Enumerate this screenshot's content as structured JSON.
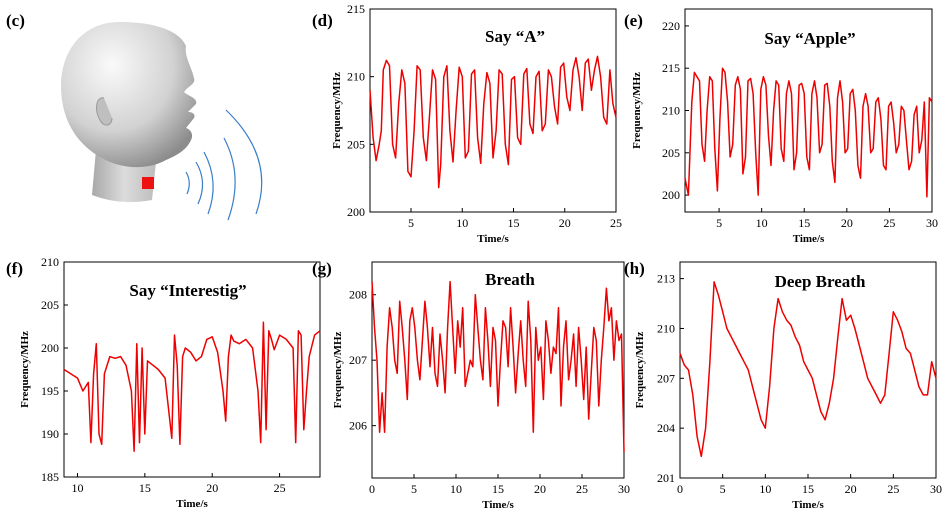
{
  "panel_c": {
    "label": "(c)",
    "marker_color": "#ee1111",
    "wave_color": "#3a7ec8",
    "illustration": "head-with-sensor-on-throat"
  },
  "chart_data": [
    {
      "id": "d",
      "label": "(d)",
      "type": "line",
      "title": "Say “A”",
      "xlabel": "Time/s",
      "ylabel": "Frequency/MHz",
      "xlim": [
        1,
        25
      ],
      "ylim": [
        200,
        215
      ],
      "xticks": [
        5,
        10,
        15,
        20,
        25
      ],
      "yticks": [
        200,
        205,
        210,
        215
      ],
      "grid": false,
      "color": "#ee0000",
      "series": [
        {
          "x": [
            1.0,
            1.3,
            1.6,
            1.9,
            2.1,
            2.3,
            2.6,
            2.9,
            3.2,
            3.5,
            3.8,
            4.1,
            4.4,
            4.7,
            5.0,
            5.3,
            5.6,
            5.9,
            6.2,
            6.5,
            6.8,
            7.1,
            7.4,
            7.7,
            7.9,
            8.2,
            8.5,
            8.8,
            9.1,
            9.4,
            9.7,
            10.0,
            10.3,
            10.6,
            10.9,
            11.2,
            11.5,
            11.8,
            12.1,
            12.4,
            12.7,
            13.0,
            13.3,
            13.6,
            13.9,
            14.2,
            14.5,
            14.8,
            15.1,
            15.4,
            15.7,
            16.0,
            16.3,
            16.6,
            16.9,
            17.2,
            17.5,
            17.8,
            18.1,
            18.4,
            18.7,
            19.0,
            19.3,
            19.6,
            19.9,
            20.2,
            20.5,
            20.8,
            21.1,
            21.4,
            21.7,
            22.0,
            22.3,
            22.6,
            22.9,
            23.2,
            23.5,
            23.8,
            24.1,
            24.4,
            24.7,
            25.0
          ],
          "y": [
            209.0,
            205.5,
            203.8,
            205.0,
            206.0,
            210.5,
            211.2,
            210.8,
            205.0,
            204.0,
            208.0,
            210.5,
            209.5,
            203.0,
            202.6,
            206.0,
            210.8,
            210.5,
            205.5,
            203.8,
            207.0,
            210.5,
            209.8,
            201.8,
            203.5,
            210.0,
            210.8,
            206.0,
            203.7,
            207.5,
            210.7,
            210.0,
            204.0,
            204.5,
            210.2,
            210.5,
            205.5,
            203.6,
            208.0,
            210.3,
            209.5,
            204.0,
            206.0,
            210.5,
            210.2,
            205.0,
            203.5,
            209.8,
            210.0,
            205.5,
            205.0,
            210.2,
            210.6,
            206.5,
            205.8,
            210.0,
            210.4,
            206.0,
            206.5,
            210.5,
            210.0,
            207.8,
            206.5,
            210.7,
            211.0,
            208.5,
            207.5,
            210.5,
            211.4,
            210.0,
            207.5,
            211.0,
            211.3,
            209.0,
            210.5,
            211.5,
            210.0,
            207.0,
            206.5,
            210.5,
            208.0,
            207.0
          ]
        }
      ]
    },
    {
      "id": "e",
      "label": "(e)",
      "type": "line",
      "title": "Say “Apple”",
      "xlabel": "Time/s",
      "ylabel": "Frequency/MHz",
      "xlim": [
        1,
        30
      ],
      "ylim": [
        198,
        222
      ],
      "xticks": [
        5,
        10,
        15,
        20,
        25,
        30
      ],
      "yticks": [
        200,
        205,
        210,
        215,
        220
      ],
      "grid": false,
      "color": "#ee0000",
      "series": [
        {
          "x": [
            1.0,
            1.4,
            1.8,
            2.1,
            2.4,
            2.7,
            3.0,
            3.3,
            3.6,
            3.9,
            4.2,
            4.5,
            4.8,
            5.1,
            5.4,
            5.7,
            6.0,
            6.3,
            6.6,
            6.9,
            7.2,
            7.5,
            7.8,
            8.1,
            8.4,
            8.7,
            9.0,
            9.3,
            9.6,
            9.9,
            10.2,
            10.5,
            10.8,
            11.1,
            11.4,
            11.7,
            12.0,
            12.3,
            12.6,
            12.9,
            13.2,
            13.5,
            13.8,
            14.1,
            14.4,
            14.7,
            15.0,
            15.3,
            15.6,
            15.9,
            16.2,
            16.5,
            16.8,
            17.1,
            17.4,
            17.7,
            18.0,
            18.3,
            18.6,
            18.9,
            19.2,
            19.5,
            19.8,
            20.1,
            20.4,
            20.7,
            21.0,
            21.3,
            21.6,
            21.9,
            22.2,
            22.5,
            22.8,
            23.1,
            23.4,
            23.7,
            24.0,
            24.3,
            24.6,
            24.9,
            25.2,
            25.5,
            25.8,
            26.1,
            26.4,
            26.7,
            27.0,
            27.3,
            27.6,
            27.9,
            28.2,
            28.5,
            28.8,
            29.1,
            29.4,
            29.7,
            30.0
          ],
          "y": [
            202.0,
            200.0,
            211.0,
            214.5,
            214.0,
            213.5,
            206.0,
            204.0,
            210.0,
            214.0,
            213.5,
            205.5,
            200.5,
            209.0,
            215.0,
            214.5,
            211.0,
            204.5,
            206.0,
            213.0,
            214.0,
            212.5,
            202.5,
            204.5,
            213.5,
            213.8,
            212.0,
            205.0,
            200.0,
            212.5,
            214.0,
            213.0,
            207.0,
            203.5,
            210.0,
            213.5,
            213.0,
            205.5,
            204.0,
            212.0,
            213.5,
            212.0,
            203.0,
            205.0,
            213.0,
            213.2,
            212.0,
            204.5,
            203.0,
            212.0,
            213.5,
            211.5,
            205.0,
            206.0,
            213.0,
            213.2,
            210.5,
            204.0,
            201.5,
            211.5,
            213.5,
            211.0,
            205.0,
            205.5,
            212.0,
            212.5,
            210.0,
            203.5,
            202.0,
            210.5,
            212.0,
            210.5,
            205.0,
            205.5,
            211.0,
            211.5,
            209.0,
            203.5,
            203.0,
            210.5,
            211.0,
            208.5,
            205.0,
            206.0,
            210.5,
            210.0,
            206.5,
            203.0,
            204.0,
            209.5,
            210.5,
            205.0,
            206.5,
            211.0,
            199.8,
            211.5,
            211.0
          ]
        }
      ]
    },
    {
      "id": "f",
      "label": "(f)",
      "type": "line",
      "title": "Say “Interestig”",
      "xlabel": "Time/s",
      "ylabel": "Frequency/MHz",
      "xlim": [
        9,
        28
      ],
      "ylim": [
        185,
        210
      ],
      "xticks": [
        10,
        15,
        20,
        25
      ],
      "yticks": [
        185,
        190,
        195,
        200,
        205,
        210
      ],
      "grid": false,
      "color": "#ee0000",
      "series": [
        {
          "x": [
            9.0,
            9.5,
            10.0,
            10.4,
            10.8,
            11.0,
            11.2,
            11.4,
            11.6,
            11.8,
            12.0,
            12.4,
            12.8,
            13.2,
            13.6,
            14.0,
            14.2,
            14.4,
            14.6,
            14.8,
            15.0,
            15.2,
            15.6,
            16.0,
            16.5,
            17.0,
            17.2,
            17.4,
            17.6,
            17.8,
            18.0,
            18.4,
            18.8,
            19.2,
            19.6,
            20.0,
            20.4,
            20.8,
            21.0,
            21.2,
            21.4,
            21.6,
            22.0,
            22.5,
            23.0,
            23.4,
            23.6,
            23.8,
            24.0,
            24.2,
            24.4,
            24.6,
            25.0,
            25.5,
            26.0,
            26.2,
            26.4,
            26.6,
            26.8,
            27.0,
            27.2,
            27.6,
            28.0
          ],
          "y": [
            197.5,
            197.0,
            196.5,
            195.0,
            196.0,
            189.0,
            197.0,
            200.5,
            190.0,
            188.8,
            197.0,
            199.0,
            198.8,
            199.0,
            198.0,
            195.0,
            188.0,
            200.5,
            189.0,
            200.0,
            190.0,
            198.5,
            198.0,
            197.5,
            196.5,
            189.5,
            201.5,
            198.0,
            188.8,
            199.0,
            200.0,
            199.5,
            198.5,
            199.0,
            201.0,
            201.3,
            199.5,
            195.0,
            191.5,
            199.0,
            201.5,
            200.8,
            200.5,
            201.0,
            200.0,
            195.0,
            189.0,
            203.0,
            190.5,
            202.0,
            201.0,
            199.8,
            201.5,
            201.0,
            200.0,
            189.0,
            202.0,
            201.5,
            190.5,
            195.0,
            199.0,
            201.5,
            202.0
          ]
        }
      ]
    },
    {
      "id": "g",
      "label": "(g)",
      "type": "line",
      "title": "Breath",
      "xlabel": "Time/s",
      "ylabel": "Frequency/MHz",
      "xlim": [
        0,
        30
      ],
      "ylim": [
        205.2,
        208.5
      ],
      "xticks": [
        0,
        5,
        10,
        15,
        20,
        25,
        30
      ],
      "yticks": [
        206,
        207,
        208
      ],
      "grid": false,
      "color": "#ee0000",
      "series": [
        {
          "x": [
            0.0,
            0.3,
            0.6,
            0.9,
            1.2,
            1.5,
            1.8,
            2.1,
            2.4,
            2.7,
            3.0,
            3.3,
            3.6,
            3.9,
            4.2,
            4.5,
            4.8,
            5.1,
            5.4,
            5.7,
            6.0,
            6.3,
            6.6,
            6.9,
            7.2,
            7.5,
            7.8,
            8.1,
            8.4,
            8.7,
            9.0,
            9.3,
            9.6,
            9.9,
            10.2,
            10.5,
            10.8,
            11.1,
            11.4,
            11.7,
            12.0,
            12.3,
            12.6,
            12.9,
            13.2,
            13.5,
            13.8,
            14.1,
            14.4,
            14.7,
            15.0,
            15.3,
            15.6,
            15.9,
            16.2,
            16.5,
            16.8,
            17.1,
            17.4,
            17.7,
            18.0,
            18.3,
            18.6,
            18.9,
            19.2,
            19.5,
            19.8,
            20.1,
            20.4,
            20.7,
            21.0,
            21.3,
            21.6,
            21.9,
            22.2,
            22.5,
            22.8,
            23.1,
            23.4,
            23.7,
            24.0,
            24.3,
            24.6,
            24.9,
            25.2,
            25.5,
            25.8,
            26.1,
            26.4,
            26.7,
            27.0,
            27.3,
            27.6,
            27.9,
            28.2,
            28.5,
            28.8,
            29.1,
            29.4,
            29.7,
            30.0
          ],
          "y": [
            208.2,
            207.5,
            207.0,
            205.9,
            206.5,
            205.9,
            207.2,
            207.8,
            207.5,
            207.0,
            206.8,
            207.9,
            207.5,
            207.0,
            206.4,
            207.6,
            207.8,
            207.5,
            207.0,
            206.7,
            207.3,
            207.9,
            207.5,
            206.9,
            207.5,
            206.8,
            206.6,
            207.4,
            207.0,
            206.5,
            207.5,
            208.2,
            207.5,
            206.8,
            207.6,
            207.2,
            207.8,
            206.6,
            206.8,
            207.0,
            206.9,
            208.0,
            207.5,
            207.0,
            206.7,
            207.8,
            207.3,
            206.6,
            207.5,
            207.3,
            206.3,
            207.0,
            207.6,
            207.5,
            206.9,
            207.8,
            207.2,
            206.5,
            207.1,
            207.6,
            207.0,
            206.6,
            207.9,
            207.3,
            205.9,
            207.5,
            207.0,
            207.2,
            206.4,
            207.6,
            207.3,
            206.8,
            207.2,
            207.1,
            207.8,
            206.3,
            207.2,
            207.6,
            206.7,
            207.0,
            207.4,
            206.6,
            207.5,
            207.0,
            206.4,
            207.2,
            206.1,
            206.8,
            207.5,
            207.3,
            206.3,
            207.0,
            207.5,
            208.1,
            207.6,
            207.8,
            207.0,
            207.6,
            207.3,
            207.4,
            205.6
          ]
        }
      ]
    },
    {
      "id": "h",
      "label": "(h)",
      "type": "line",
      "title": "Deep Breath",
      "xlabel": "Time/s",
      "ylabel": "Frequency/MHz",
      "xlim": [
        0,
        30
      ],
      "ylim": [
        201,
        214
      ],
      "xticks": [
        0,
        5,
        10,
        15,
        20,
        25,
        30
      ],
      "yticks": [
        201,
        204,
        207,
        210,
        213
      ],
      "grid": false,
      "color": "#ee0000",
      "series": [
        {
          "x": [
            0.0,
            0.5,
            1.0,
            1.5,
            2.0,
            2.5,
            3.0,
            3.5,
            4.0,
            4.5,
            5.0,
            5.5,
            6.0,
            6.5,
            7.0,
            7.5,
            8.0,
            8.5,
            9.0,
            9.5,
            10.0,
            10.5,
            11.0,
            11.5,
            12.0,
            12.5,
            13.0,
            13.5,
            14.0,
            14.5,
            15.0,
            15.5,
            16.0,
            16.5,
            17.0,
            17.5,
            18.0,
            18.5,
            19.0,
            19.5,
            20.0,
            20.5,
            21.0,
            21.5,
            22.0,
            22.5,
            23.0,
            23.5,
            24.0,
            24.5,
            25.0,
            25.5,
            26.0,
            26.5,
            27.0,
            27.5,
            28.0,
            28.5,
            29.0,
            29.5,
            30.0
          ],
          "y": [
            208.5,
            207.8,
            207.5,
            206.0,
            203.5,
            202.3,
            204.0,
            208.0,
            212.8,
            212.0,
            211.0,
            210.0,
            209.5,
            209.0,
            208.5,
            208.0,
            207.5,
            206.5,
            205.5,
            204.5,
            204.0,
            206.5,
            210.0,
            211.8,
            211.0,
            210.5,
            210.2,
            209.5,
            209.0,
            208.0,
            207.5,
            207.0,
            206.0,
            205.0,
            204.5,
            205.5,
            207.0,
            209.5,
            211.8,
            210.5,
            210.8,
            210.0,
            209.0,
            208.0,
            207.0,
            206.5,
            206.0,
            205.5,
            206.0,
            208.5,
            211.0,
            210.5,
            209.8,
            208.8,
            208.5,
            207.5,
            206.5,
            206.0,
            206.0,
            208.0,
            207.0
          ]
        }
      ]
    }
  ]
}
